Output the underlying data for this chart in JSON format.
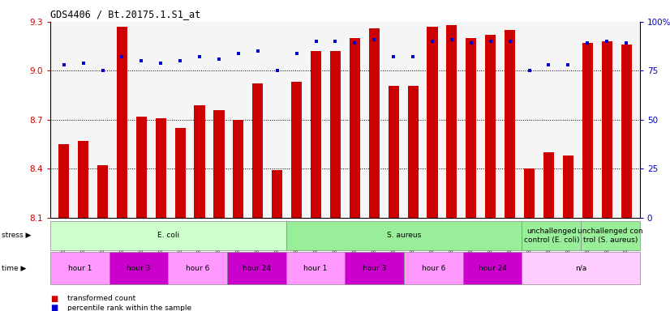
{
  "title": "GDS4406 / Bt.20175.1.S1_at",
  "categories": [
    "GSM624020",
    "GSM624025",
    "GSM624030",
    "GSM624021",
    "GSM624026",
    "GSM624031",
    "GSM624022",
    "GSM624027",
    "GSM624032",
    "GSM624023",
    "GSM624028",
    "GSM624033",
    "GSM624048",
    "GSM624053",
    "GSM624058",
    "GSM624049",
    "GSM624054",
    "GSM624059",
    "GSM624050",
    "GSM624055",
    "GSM624060",
    "GSM624051",
    "GSM624056",
    "GSM624061",
    "GSM624019",
    "GSM624024",
    "GSM624029",
    "GSM624047",
    "GSM624052",
    "GSM624057"
  ],
  "bar_values": [
    8.55,
    8.57,
    8.42,
    9.27,
    8.72,
    8.71,
    8.65,
    8.79,
    8.76,
    8.7,
    8.92,
    8.39,
    8.93,
    9.12,
    9.12,
    9.2,
    9.26,
    8.91,
    8.91,
    9.27,
    9.28,
    9.2,
    9.22,
    9.25,
    8.4,
    8.5,
    8.48,
    9.17,
    9.18,
    9.16
  ],
  "percentile_values": [
    78,
    79,
    75,
    82,
    80,
    79,
    80,
    82,
    81,
    84,
    85,
    75,
    84,
    90,
    90,
    89,
    91,
    82,
    82,
    90,
    91,
    89,
    90,
    90,
    75,
    78,
    78,
    89,
    90,
    89
  ],
  "bar_color": "#cc0000",
  "percentile_color": "#0000cc",
  "ylim_left": [
    8.1,
    9.3
  ],
  "ylim_right": [
    0,
    100
  ],
  "yticks_left": [
    8.1,
    8.4,
    8.7,
    9.0,
    9.3
  ],
  "ytick_labels_left": [
    "8.1",
    "8.4",
    "8.7",
    "9.0",
    "9.3"
  ],
  "yticks_right": [
    0,
    25,
    50,
    75,
    100
  ],
  "ytick_labels_right": [
    "0",
    "25",
    "50",
    "75",
    "100%"
  ],
  "hlines": [
    8.4,
    8.7,
    9.0
  ],
  "background_color": "#ffffff",
  "plot_bg_color": "#f5f5f5",
  "stress_row": [
    {
      "label": "E. coli",
      "start": 0,
      "end": 12,
      "color": "#ccffcc"
    },
    {
      "label": "S. aureus",
      "start": 12,
      "end": 24,
      "color": "#99ee99"
    },
    {
      "label": "unchallenged\ncontrol (E. coli)",
      "start": 24,
      "end": 27,
      "color": "#99ee99"
    },
    {
      "label": "unchallenged con\ntrol (S. aureus)",
      "start": 27,
      "end": 30,
      "color": "#99ee99"
    }
  ],
  "time_row": [
    {
      "label": "hour 1",
      "start": 0,
      "end": 3,
      "color": "#ff99ff"
    },
    {
      "label": "hour 3",
      "start": 3,
      "end": 6,
      "color": "#cc00cc"
    },
    {
      "label": "hour 6",
      "start": 6,
      "end": 9,
      "color": "#ff99ff"
    },
    {
      "label": "hour 24",
      "start": 9,
      "end": 12,
      "color": "#cc00cc"
    },
    {
      "label": "hour 1",
      "start": 12,
      "end": 15,
      "color": "#ff99ff"
    },
    {
      "label": "hour 3",
      "start": 15,
      "end": 18,
      "color": "#cc00cc"
    },
    {
      "label": "hour 6",
      "start": 18,
      "end": 21,
      "color": "#ff99ff"
    },
    {
      "label": "hour 24",
      "start": 21,
      "end": 24,
      "color": "#cc00cc"
    },
    {
      "label": "n/a",
      "start": 24,
      "end": 30,
      "color": "#ffccff"
    }
  ]
}
